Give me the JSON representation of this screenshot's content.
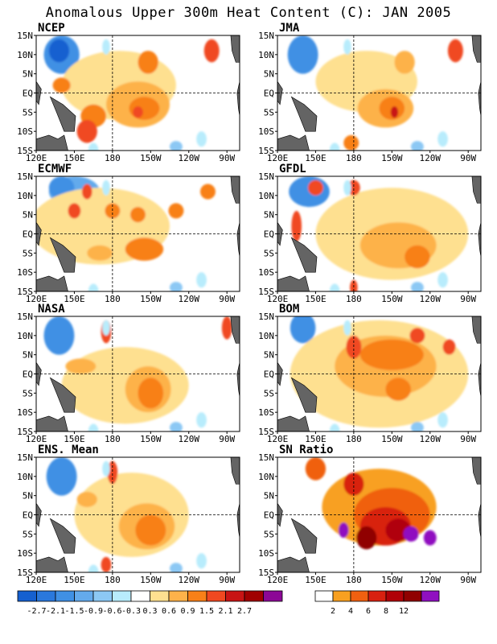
{
  "title": "Anomalous Upper 300m Heat Content (C): JAN 2005",
  "lat_labels": [
    "15N",
    "10N",
    "5N",
    "EQ",
    "5S",
    "10S",
    "15S"
  ],
  "lon_labels": [
    "120E",
    "150E",
    "180",
    "150W",
    "120W",
    "90W"
  ],
  "panels": [
    {
      "name": "NCEP",
      "kind": "anomaly"
    },
    {
      "name": "JMA",
      "kind": "anomaly"
    },
    {
      "name": "ECMWF",
      "kind": "anomaly"
    },
    {
      "name": "GFDL",
      "kind": "anomaly"
    },
    {
      "name": "NASA",
      "kind": "anomaly"
    },
    {
      "name": "BOM",
      "kind": "anomaly"
    },
    {
      "name": "ENS. Mean",
      "kind": "anomaly"
    },
    {
      "name": "SN Ratio",
      "kind": "ratio"
    }
  ],
  "colorbar_anomaly": {
    "colors": [
      "#1560d0",
      "#2a78dc",
      "#4090e4",
      "#64aaec",
      "#8cc8f4",
      "#b8ecfc",
      "#ffffff",
      "#fee090",
      "#fdb24a",
      "#f88018",
      "#f04820",
      "#c81414",
      "#a00000",
      "#8c0896"
    ],
    "labels": [
      "-2.7",
      "-2.1",
      "-1.5",
      "-0.9",
      "-0.6",
      "-0.3",
      "0.3",
      "0.6",
      "0.9",
      "1.5",
      "2.1",
      "2.7"
    ]
  },
  "colorbar_ratio": {
    "colors": [
      "#ffffff",
      "#f8a020",
      "#f06010",
      "#d82010",
      "#b00008",
      "#900000",
      "#9010c0"
    ],
    "labels": [
      "2",
      "4",
      "6",
      "8",
      "12"
    ]
  },
  "map_colors": {
    "land": "#646464",
    "grid": "#000000"
  }
}
